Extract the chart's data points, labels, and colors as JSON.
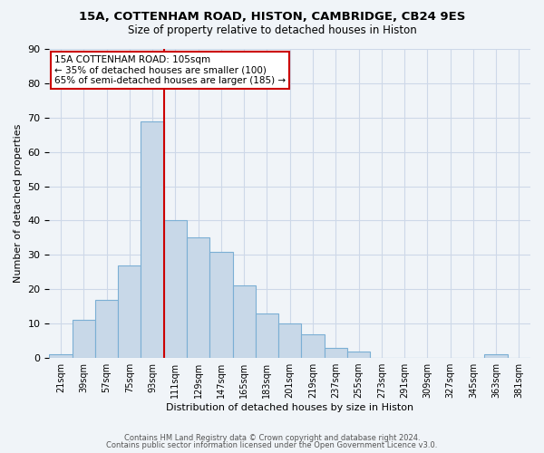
{
  "title1": "15A, COTTENHAM ROAD, HISTON, CAMBRIDGE, CB24 9ES",
  "title2": "Size of property relative to detached houses in Histon",
  "xlabel": "Distribution of detached houses by size in Histon",
  "ylabel": "Number of detached properties",
  "categories": [
    "21sqm",
    "39sqm",
    "57sqm",
    "75sqm",
    "93sqm",
    "111sqm",
    "129sqm",
    "147sqm",
    "165sqm",
    "183sqm",
    "201sqm",
    "219sqm",
    "237sqm",
    "255sqm",
    "273sqm",
    "291sqm",
    "309sqm",
    "327sqm",
    "345sqm",
    "363sqm",
    "381sqm"
  ],
  "values": [
    1,
    11,
    17,
    27,
    69,
    40,
    35,
    31,
    21,
    13,
    10,
    7,
    3,
    2,
    0,
    0,
    0,
    0,
    0,
    1,
    0
  ],
  "bar_color": "#c8d8e8",
  "bar_edge_color": "#7bafd4",
  "property_line_x": 4.5,
  "property_line_color": "#cc0000",
  "annotation_text": "15A COTTENHAM ROAD: 105sqm\n← 35% of detached houses are smaller (100)\n65% of semi-detached houses are larger (185) →",
  "annotation_box_color": "#ffffff",
  "annotation_box_edge": "#cc0000",
  "footer1": "Contains HM Land Registry data © Crown copyright and database right 2024.",
  "footer2": "Contains public sector information licensed under the Open Government Licence v3.0.",
  "bg_color": "#f0f4f8",
  "grid_color": "#cdd8e8",
  "ylim": [
    0,
    90
  ]
}
